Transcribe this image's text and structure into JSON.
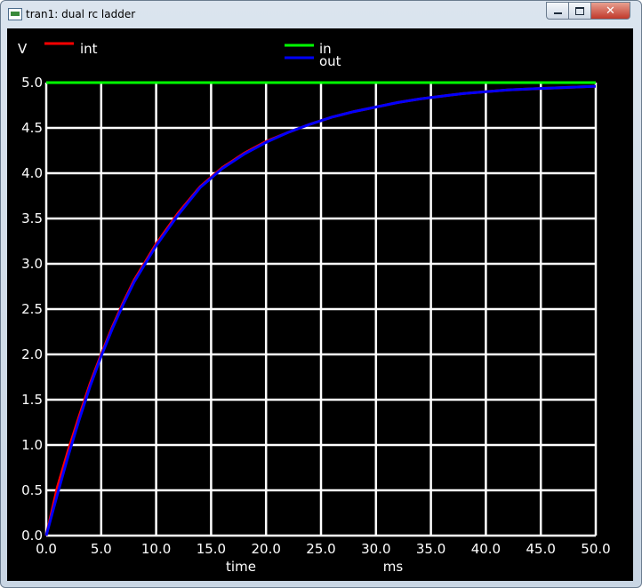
{
  "window": {
    "title": "tran1: dual rc ladder",
    "close_glyph": "✕"
  },
  "chart_data": {
    "type": "line",
    "ylabel": "V",
    "xlabel": "time",
    "xunit": "ms",
    "xlim": [
      0.0,
      50.0
    ],
    "ylim": [
      0.0,
      5.0
    ],
    "xticks": [
      "0.0",
      "5.0",
      "10.0",
      "15.0",
      "20.0",
      "25.0",
      "30.0",
      "35.0",
      "40.0",
      "45.0",
      "50.0"
    ],
    "yticks": [
      "0.0",
      "0.5",
      "1.0",
      "1.5",
      "2.0",
      "2.5",
      "3.0",
      "3.5",
      "4.0",
      "4.5",
      "5.0"
    ],
    "grid": true,
    "background": "#000000",
    "grid_color": "#ffffff",
    "series": [
      {
        "name": "int",
        "color": "#ff0000",
        "x": [
          0,
          1,
          2,
          3,
          4,
          5,
          6,
          7,
          8,
          10,
          12,
          14,
          16,
          18,
          20,
          22,
          24,
          26,
          28,
          30,
          32,
          34,
          36,
          38,
          40,
          42,
          44,
          46,
          48,
          50
        ],
        "y": [
          0,
          0.53,
          0.94,
          1.32,
          1.68,
          2.0,
          2.3,
          2.57,
          2.82,
          3.22,
          3.56,
          3.85,
          4.06,
          4.22,
          4.35,
          4.45,
          4.54,
          4.62,
          4.68,
          4.73,
          4.78,
          4.82,
          4.85,
          4.88,
          4.9,
          4.92,
          4.93,
          4.94,
          4.95,
          4.96
        ]
      },
      {
        "name": "in",
        "color": "#00ff00",
        "x": [
          0,
          50
        ],
        "y": [
          5.0,
          5.0
        ]
      },
      {
        "name": "out",
        "color": "#0000ff",
        "x": [
          0,
          1,
          2,
          3,
          4,
          5,
          6,
          7,
          8,
          10,
          12,
          14,
          16,
          18,
          20,
          22,
          24,
          26,
          28,
          30,
          32,
          34,
          36,
          38,
          40,
          42,
          44,
          46,
          48,
          50
        ],
        "y": [
          0,
          0.45,
          0.88,
          1.28,
          1.65,
          1.98,
          2.28,
          2.55,
          2.8,
          3.2,
          3.54,
          3.84,
          4.05,
          4.21,
          4.34,
          4.45,
          4.54,
          4.62,
          4.68,
          4.73,
          4.78,
          4.82,
          4.85,
          4.88,
          4.9,
          4.92,
          4.93,
          4.94,
          4.95,
          4.96
        ]
      }
    ]
  }
}
